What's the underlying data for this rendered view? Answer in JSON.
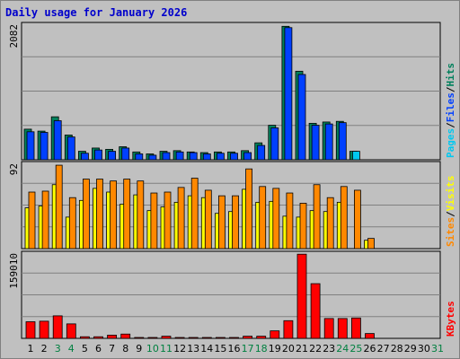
{
  "title": "Daily usage for January 2026",
  "colors": {
    "background": "#c0c0c0",
    "grid": "#808080",
    "title": "#0000cc",
    "hits": "#00805c",
    "files": "#0040ff",
    "pages": "#00c8f0",
    "visits": "#ffff00",
    "sites": "#ff8800",
    "kbytes": "#ff0000",
    "weekday": "#000000",
    "weekend": "#008040"
  },
  "chart_data": [
    {
      "type": "bar",
      "panel": "hits-files-pages",
      "ymax_label": "2082",
      "ylim": [
        0,
        2082
      ],
      "legend": [
        "Pages",
        "/",
        "Files",
        "/",
        "Hits"
      ],
      "categories": [
        "1",
        "2",
        "3",
        "4",
        "5",
        "6",
        "7",
        "8",
        "9",
        "10",
        "11",
        "12",
        "13",
        "14",
        "15",
        "16",
        "17",
        "18",
        "19",
        "20",
        "21",
        "22",
        "23",
        "24",
        "25",
        "26",
        "27",
        "28",
        "29",
        "30",
        "31"
      ],
      "series": [
        {
          "name": "Hits",
          "values": [
            470,
            440,
            660,
            380,
            130,
            180,
            160,
            200,
            120,
            90,
            130,
            140,
            120,
            110,
            120,
            120,
            140,
            260,
            530,
            2050,
            1360,
            560,
            580,
            590,
            130,
            0,
            0,
            0,
            0,
            0,
            0
          ]
        },
        {
          "name": "Files",
          "values": [
            430,
            420,
            600,
            350,
            100,
            150,
            130,
            180,
            90,
            70,
            110,
            120,
            110,
            90,
            100,
            100,
            110,
            220,
            490,
            2030,
            1310,
            530,
            550,
            570,
            0,
            0,
            0,
            0,
            0,
            0,
            0
          ]
        },
        {
          "name": "Pages",
          "values": [
            0,
            0,
            0,
            0,
            0,
            0,
            0,
            0,
            0,
            0,
            0,
            0,
            0,
            0,
            0,
            0,
            0,
            0,
            0,
            0,
            0,
            0,
            0,
            0,
            130,
            0,
            0,
            0,
            0,
            0,
            0
          ]
        }
      ]
    },
    {
      "type": "bar",
      "panel": "visits-sites",
      "ymax_label": "92",
      "ylim": [
        0,
        92
      ],
      "legend": [
        "Sites",
        "/",
        "Visits"
      ],
      "categories": [
        "1",
        "2",
        "3",
        "4",
        "5",
        "6",
        "7",
        "8",
        "9",
        "10",
        "11",
        "12",
        "13",
        "14",
        "15",
        "16",
        "17",
        "18",
        "19",
        "20",
        "21",
        "22",
        "23",
        "24",
        "25",
        "26",
        "27",
        "28",
        "29",
        "30",
        "31"
      ],
      "series": [
        {
          "name": "Visits",
          "values": [
            44,
            46,
            69,
            34,
            52,
            65,
            61,
            48,
            58,
            41,
            45,
            50,
            57,
            55,
            38,
            40,
            64,
            50,
            51,
            35,
            34,
            41,
            40,
            50,
            0,
            9,
            0,
            0,
            0,
            0,
            0
          ]
        },
        {
          "name": "Sites",
          "values": [
            61,
            62,
            90,
            55,
            75,
            75,
            73,
            75,
            73,
            60,
            61,
            66,
            76,
            63,
            57,
            57,
            86,
            67,
            65,
            60,
            49,
            69,
            55,
            67,
            63,
            11,
            0,
            0,
            0,
            0,
            0
          ]
        }
      ]
    },
    {
      "type": "bar",
      "panel": "kbytes",
      "ymax_label": "159010",
      "ylim": [
        0,
        159010
      ],
      "legend": [
        "KBytes"
      ],
      "categories": [
        "1",
        "2",
        "3",
        "4",
        "5",
        "6",
        "7",
        "8",
        "9",
        "10",
        "11",
        "12",
        "13",
        "14",
        "15",
        "16",
        "17",
        "18",
        "19",
        "20",
        "21",
        "22",
        "23",
        "24",
        "25",
        "26",
        "27",
        "28",
        "29",
        "30",
        "31"
      ],
      "series": [
        {
          "name": "KBytes",
          "values": [
            31000,
            32000,
            42000,
            27000,
            3000,
            3000,
            6000,
            8000,
            1500,
            1500,
            4000,
            1500,
            1500,
            1500,
            1500,
            1500,
            4000,
            4000,
            14000,
            33000,
            157000,
            102000,
            37000,
            37000,
            38000,
            9000,
            0,
            0,
            0,
            0,
            0
          ]
        }
      ]
    }
  ],
  "weekend_days": [
    3,
    4,
    10,
    11,
    17,
    18,
    24,
    25,
    31
  ]
}
